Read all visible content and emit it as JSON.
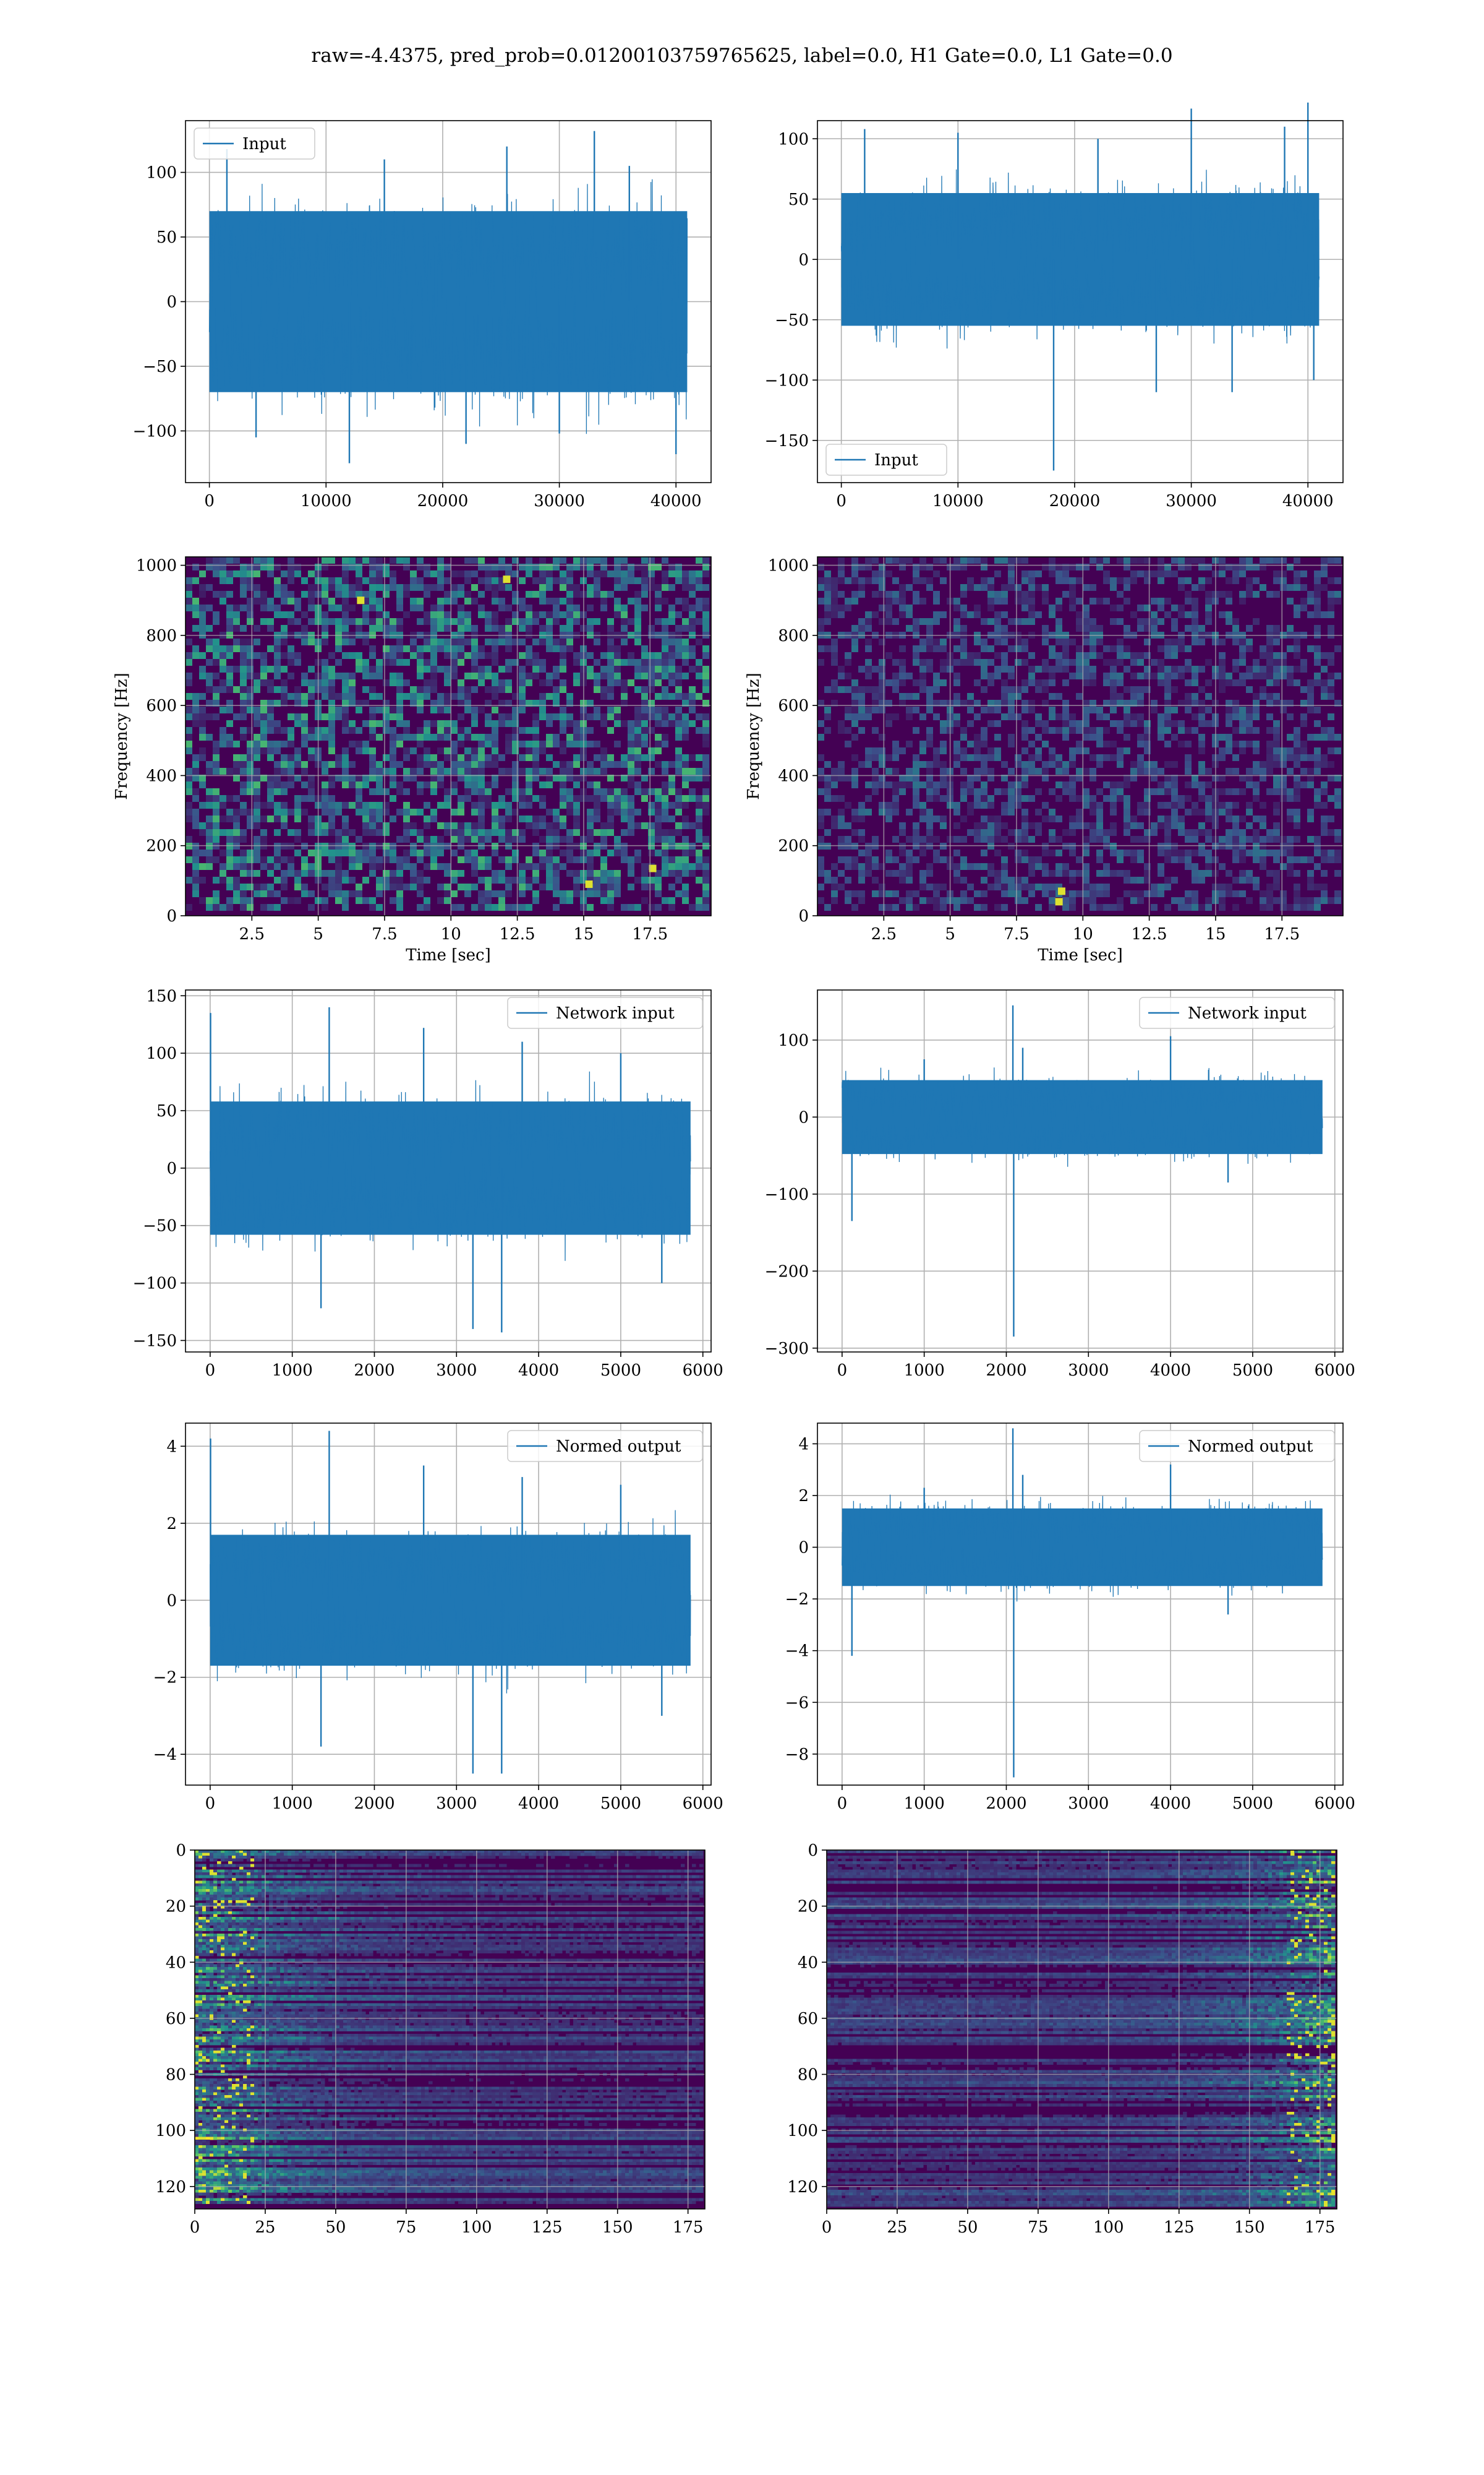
{
  "figure_title": "raw=-4.4375, pred_prob=0.01200103759765625, label=0.0, H1 Gate=0.0, L1 Gate=0.0",
  "colors": {
    "line": "#1f77b4",
    "grid": "#b0b0b0",
    "viridis_low": "#440154",
    "viridis_mid": "#21918c",
    "viridis_high": "#fde725"
  },
  "chart_data": [
    {
      "id": "h1-input",
      "type": "line",
      "legend": "Input",
      "legend_loc": "upper left",
      "xlim": [
        -2048,
        43008
      ],
      "ylim": [
        -140,
        140
      ],
      "xticks": [
        0,
        10000,
        20000,
        30000,
        40000
      ],
      "yticks": [
        -100,
        -50,
        0,
        50,
        100
      ],
      "series": [
        {
          "name": "Input",
          "n_samples": 40960,
          "band": [
            -70,
            70
          ],
          "spikes": [
            [
              1500,
              118
            ],
            [
              4000,
              -105
            ],
            [
              12000,
              -125
            ],
            [
              15000,
              110
            ],
            [
              22000,
              -110
            ],
            [
              25500,
              120
            ],
            [
              30000,
              -102
            ],
            [
              33000,
              132
            ],
            [
              36000,
              105
            ],
            [
              40000,
              -118
            ]
          ]
        }
      ]
    },
    {
      "id": "l1-input",
      "type": "line",
      "legend": "Input",
      "legend_loc": "lower left",
      "xlim": [
        -2048,
        43008
      ],
      "ylim": [
        -185,
        115
      ],
      "xticks": [
        0,
        10000,
        20000,
        30000,
        40000
      ],
      "yticks": [
        -150,
        -100,
        -50,
        0,
        50,
        100
      ],
      "series": [
        {
          "name": "Input",
          "n_samples": 40960,
          "band": [
            -55,
            55
          ],
          "spikes": [
            [
              2000,
              108
            ],
            [
              10000,
              105
            ],
            [
              18200,
              -175
            ],
            [
              22000,
              100
            ],
            [
              27000,
              -110
            ],
            [
              30000,
              125
            ],
            [
              33500,
              -110
            ],
            [
              38000,
              110
            ],
            [
              40000,
              130
            ],
            [
              40500,
              -100
            ]
          ]
        }
      ]
    },
    {
      "id": "h1-spec",
      "type": "heatmap",
      "xlabel": "Time [sec]",
      "ylabel": "Frequency [Hz]",
      "xlim": [
        0,
        19.8
      ],
      "ylim": [
        0,
        1024
      ],
      "xticks": [
        2.5,
        5.0,
        7.5,
        10.0,
        12.5,
        15.0,
        17.5
      ],
      "yticks": [
        0,
        200,
        400,
        600,
        800,
        1000
      ],
      "intensity": 0.55,
      "bright_spots": [
        [
          17.6,
          135
        ],
        [
          15.2,
          90
        ],
        [
          6.6,
          900
        ],
        [
          12.1,
          960
        ]
      ]
    },
    {
      "id": "l1-spec",
      "type": "heatmap",
      "xlabel": "Time [sec]",
      "ylabel": "Frequency [Hz]",
      "xlim": [
        0,
        19.8
      ],
      "ylim": [
        0,
        1024
      ],
      "xticks": [
        2.5,
        5.0,
        7.5,
        10.0,
        12.5,
        15.0,
        17.5
      ],
      "yticks": [
        0,
        200,
        400,
        600,
        800,
        1000
      ],
      "intensity": 0.32,
      "bright_spots": [
        [
          9.1,
          40
        ],
        [
          9.2,
          70
        ]
      ]
    },
    {
      "id": "h1-net",
      "type": "line",
      "legend": "Network input",
      "legend_loc": "upper right",
      "xlim": [
        -300,
        6100
      ],
      "ylim": [
        -160,
        155
      ],
      "xticks": [
        0,
        1000,
        2000,
        3000,
        4000,
        5000,
        6000
      ],
      "yticks": [
        -150,
        -100,
        -50,
        0,
        50,
        100,
        150
      ],
      "series": [
        {
          "name": "Network input",
          "n_samples": 5850,
          "band": [
            -58,
            58
          ],
          "spikes": [
            [
              5,
              135
            ],
            [
              1350,
              -122
            ],
            [
              1450,
              140
            ],
            [
              2600,
              122
            ],
            [
              3200,
              -140
            ],
            [
              3550,
              -143
            ],
            [
              3800,
              110
            ],
            [
              5000,
              100
            ],
            [
              5500,
              -100
            ]
          ]
        }
      ]
    },
    {
      "id": "l1-net",
      "type": "line",
      "legend": "Network input",
      "legend_loc": "upper right",
      "xlim": [
        -300,
        6100
      ],
      "ylim": [
        -305,
        165
      ],
      "xticks": [
        0,
        1000,
        2000,
        3000,
        4000,
        5000,
        6000
      ],
      "yticks": [
        -300,
        -200,
        -100,
        0,
        100
      ],
      "series": [
        {
          "name": "Network input",
          "n_samples": 5850,
          "band": [
            -48,
            48
          ],
          "spikes": [
            [
              120,
              -135
            ],
            [
              1000,
              75
            ],
            [
              2080,
              145
            ],
            [
              2090,
              -285
            ],
            [
              2200,
              90
            ],
            [
              4000,
              105
            ],
            [
              4700,
              -85
            ]
          ]
        }
      ]
    },
    {
      "id": "h1-norm",
      "type": "line",
      "legend": "Normed output",
      "legend_loc": "upper right",
      "xlim": [
        -300,
        6100
      ],
      "ylim": [
        -4.8,
        4.6
      ],
      "xticks": [
        0,
        1000,
        2000,
        3000,
        4000,
        5000,
        6000
      ],
      "yticks": [
        -4,
        -2,
        0,
        2,
        4
      ],
      "series": [
        {
          "name": "Normed output",
          "n_samples": 5850,
          "band": [
            -1.7,
            1.7
          ],
          "spikes": [
            [
              5,
              4.2
            ],
            [
              1350,
              -3.8
            ],
            [
              1450,
              4.4
            ],
            [
              2600,
              3.5
            ],
            [
              3200,
              -4.5
            ],
            [
              3550,
              -4.5
            ],
            [
              3800,
              3.2
            ],
            [
              5000,
              3.0
            ],
            [
              5500,
              -3.0
            ]
          ]
        }
      ]
    },
    {
      "id": "l1-norm",
      "type": "line",
      "legend": "Normed output",
      "legend_loc": "upper right",
      "xlim": [
        -300,
        6100
      ],
      "ylim": [
        -9.2,
        4.8
      ],
      "xticks": [
        0,
        1000,
        2000,
        3000,
        4000,
        5000,
        6000
      ],
      "yticks": [
        -8,
        -6,
        -4,
        -2,
        0,
        2,
        4
      ],
      "series": [
        {
          "name": "Normed output",
          "n_samples": 5850,
          "band": [
            -1.5,
            1.5
          ],
          "spikes": [
            [
              120,
              -4.2
            ],
            [
              1000,
              2.3
            ],
            [
              2080,
              4.6
            ],
            [
              2090,
              -8.9
            ],
            [
              2200,
              2.8
            ],
            [
              4000,
              3.2
            ],
            [
              4700,
              -2.6
            ]
          ]
        }
      ]
    },
    {
      "id": "h1-feat",
      "type": "heatmap",
      "y_inverted": true,
      "xlim": [
        0,
        181
      ],
      "ylim": [
        0,
        128
      ],
      "xticks": [
        0,
        25,
        50,
        75,
        100,
        125,
        150,
        175
      ],
      "yticks": [
        0,
        20,
        40,
        60,
        80,
        100,
        120
      ],
      "intensity": 0.35,
      "hot_edge": "left"
    },
    {
      "id": "l1-feat",
      "type": "heatmap",
      "y_inverted": true,
      "xlim": [
        0,
        181
      ],
      "ylim": [
        0,
        128
      ],
      "xticks": [
        0,
        25,
        50,
        75,
        100,
        125,
        150,
        175
      ],
      "yticks": [
        0,
        20,
        40,
        60,
        80,
        100,
        120
      ],
      "intensity": 0.35,
      "hot_edge": "right"
    }
  ]
}
